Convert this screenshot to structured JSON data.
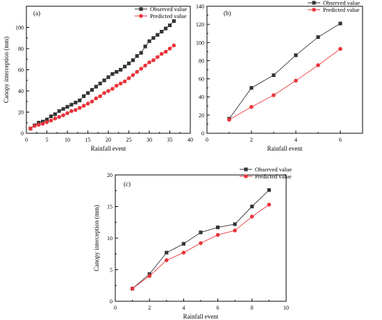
{
  "chart_data": [
    {
      "type": "line",
      "panel_label": "(a)",
      "xlabel": "Rainfall event",
      "ylabel": "Canopy interception (mm)",
      "xlim": [
        0,
        40
      ],
      "ylim": [
        0,
        120
      ],
      "xticks": [
        0,
        5,
        10,
        15,
        20,
        25,
        30,
        35,
        40
      ],
      "yticks": [
        0,
        20,
        40,
        60,
        80,
        100
      ],
      "legend_position": "top-right",
      "x": [
        1,
        2,
        3,
        4,
        5,
        6,
        7,
        8,
        9,
        10,
        11,
        12,
        13,
        14,
        15,
        16,
        17,
        18,
        19,
        20,
        21,
        22,
        23,
        24,
        25,
        26,
        27,
        28,
        29,
        30,
        31,
        32,
        33,
        34,
        35,
        36
      ],
      "series": [
        {
          "name": "Observed value",
          "color": "#333333",
          "marker": "square",
          "values": [
            4.5,
            7.5,
            10,
            11,
            13,
            16,
            18,
            21,
            23,
            25,
            27,
            29,
            31,
            35,
            38,
            41,
            44,
            47,
            50,
            53,
            56,
            58,
            60,
            63,
            66,
            69,
            73,
            76,
            82,
            87,
            90,
            93,
            96,
            99,
            102,
            106
          ]
        },
        {
          "name": "Predicted value",
          "color": "#e8343a",
          "marker": "circle",
          "values": [
            4.5,
            7,
            8,
            9,
            10.5,
            12,
            14,
            15.5,
            17,
            19,
            21,
            22,
            24,
            26,
            28,
            30,
            33,
            35,
            38,
            40,
            42,
            45,
            47,
            49,
            52,
            55,
            58,
            61,
            64,
            67,
            69,
            72,
            75,
            77,
            80,
            83
          ]
        }
      ]
    },
    {
      "type": "line",
      "panel_label": "(b)",
      "xlabel": "Rainfall event",
      "ylabel": "",
      "xlim": [
        0,
        7
      ],
      "ylim": [
        0,
        140
      ],
      "xticks": [
        0,
        2,
        4,
        6
      ],
      "yticks": [
        0,
        20,
        40,
        60,
        80,
        100,
        120,
        140
      ],
      "legend_position": "top-left",
      "x": [
        1,
        2,
        3,
        4,
        5,
        6
      ],
      "series": [
        {
          "name": "Observed value",
          "color": "#333333",
          "marker": "square",
          "values": [
            16,
            50,
            64,
            86,
            106,
            121
          ]
        },
        {
          "name": "Predicted value",
          "color": "#e8343a",
          "marker": "circle",
          "values": [
            15,
            29,
            42,
            58,
            75,
            93
          ]
        }
      ]
    },
    {
      "type": "line",
      "panel_label": "(c)",
      "xlabel": "Rainfall event",
      "ylabel": "Canopy interception (mm)",
      "xlim": [
        0,
        10
      ],
      "ylim": [
        0,
        20
      ],
      "xticks": [
        0,
        2,
        4,
        6,
        8,
        10
      ],
      "yticks": [
        0,
        5,
        10,
        15,
        20
      ],
      "legend_position": "top-right",
      "x": [
        1,
        2,
        3,
        4,
        5,
        6,
        7,
        8,
        9
      ],
      "series": [
        {
          "name": "Observed value",
          "color": "#333333",
          "marker": "square",
          "values": [
            2,
            4.3,
            7.7,
            9.1,
            10.9,
            11.7,
            12.2,
            15,
            17.6
          ]
        },
        {
          "name": "Predicted value",
          "color": "#e8343a",
          "marker": "circle",
          "values": [
            2,
            4,
            6.5,
            7.7,
            9.2,
            10.5,
            11.2,
            13.4,
            15.3
          ]
        }
      ]
    }
  ]
}
